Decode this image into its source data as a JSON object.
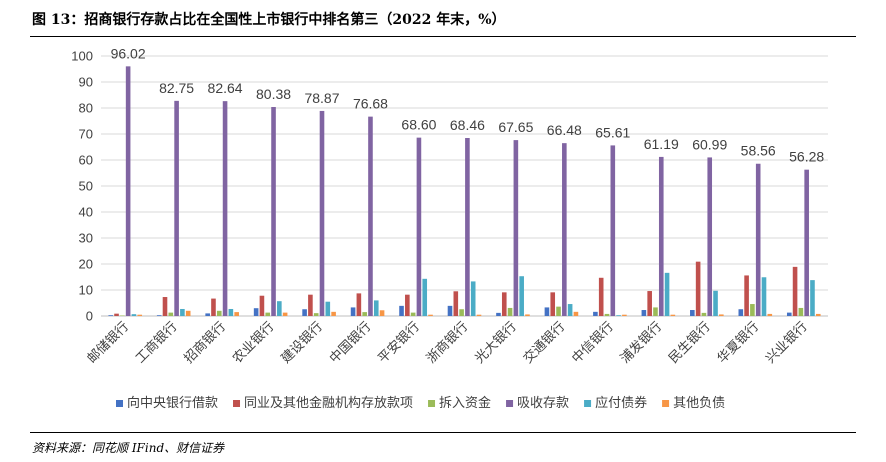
{
  "figure": {
    "title": "图 13：招商银行存款占比在全国性上市银行中排名第三（2022 年末，%）",
    "source": "资料来源：同花顺 IFind、财信证券"
  },
  "chart_data": {
    "type": "bar",
    "title": "",
    "xlabel": "",
    "ylabel": "",
    "ylim": [
      0,
      100
    ],
    "yticks": [
      0,
      10,
      20,
      30,
      40,
      50,
      60,
      70,
      80,
      90,
      100
    ],
    "grid": true,
    "legend_position": "bottom",
    "categories": [
      "邮储银行",
      "工商银行",
      "招商银行",
      "农业银行",
      "建设银行",
      "中国银行",
      "平安银行",
      "浙商银行",
      "光大银行",
      "交通银行",
      "中信银行",
      "浦发银行",
      "民生银行",
      "华夏银行",
      "兴业银行"
    ],
    "series": [
      {
        "name": "向中央银行借款",
        "color": "#4472C4",
        "values": [
          0.3,
          0.3,
          1.0,
          3.0,
          2.6,
          3.3,
          3.9,
          3.9,
          1.2,
          3.3,
          1.6,
          2.3,
          2.3,
          2.6,
          1.3
        ]
      },
      {
        "name": "同业及其他金融机构存放款项",
        "color": "#C0504D",
        "values": [
          0.9,
          7.3,
          6.7,
          7.8,
          8.2,
          8.7,
          8.2,
          9.5,
          9.1,
          9.1,
          14.7,
          9.6,
          20.9,
          15.6,
          18.9
        ]
      },
      {
        "name": "拆入资金",
        "color": "#9BBB59",
        "values": [
          0.2,
          1.3,
          2.0,
          1.3,
          1.1,
          1.5,
          1.3,
          2.6,
          3.1,
          3.6,
          0.8,
          3.3,
          1.2,
          4.6,
          3.1
        ]
      },
      {
        "name": "吸收存款",
        "color": "#8064A2",
        "values": [
          96.02,
          82.75,
          82.64,
          80.38,
          78.87,
          76.68,
          68.6,
          68.46,
          67.65,
          66.48,
          65.61,
          61.19,
          60.99,
          58.56,
          56.28
        ]
      },
      {
        "name": "应付债券",
        "color": "#4BACC6",
        "values": [
          0.7,
          2.7,
          2.7,
          5.7,
          5.5,
          6.0,
          14.3,
          13.3,
          15.3,
          4.6,
          0.3,
          16.6,
          9.7,
          14.9,
          13.8
        ]
      },
      {
        "name": "其他负债",
        "color": "#F79646",
        "values": [
          0.5,
          2.0,
          1.5,
          1.3,
          1.6,
          2.2,
          0.5,
          0.5,
          0.6,
          1.6,
          0.5,
          0.5,
          0.6,
          0.8,
          0.8
        ]
      }
    ],
    "data_labels": {
      "series": "吸收存款",
      "labels": [
        "96.02",
        "82.75",
        "82.64",
        "80.38",
        "78.87",
        "76.68",
        "68.60",
        "68.46",
        "67.65",
        "66.48",
        "65.61",
        "61.19",
        "60.99",
        "58.56",
        "56.28"
      ]
    }
  }
}
